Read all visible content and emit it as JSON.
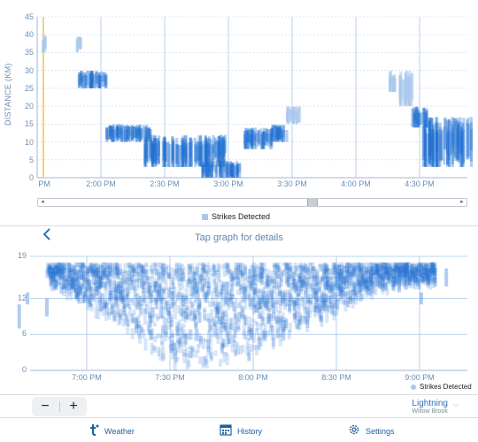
{
  "top_chart": {
    "ylabel": "DISTANCE (KM)",
    "y_ticks": [
      "45",
      "40",
      "35",
      "30",
      "25",
      "20",
      "15",
      "10",
      "5",
      "0"
    ],
    "x_ticks": [
      "PM",
      "2:00 PM",
      "2:30 PM",
      "3:00 PM",
      "3:30 PM",
      "4:00 PM",
      "4:30 PM"
    ],
    "legend": "Strikes Detected"
  },
  "nav": {
    "back_icon": "chevron-left-icon",
    "title": "Tap graph for details"
  },
  "bottom_chart": {
    "y_ticks": [
      "19",
      "12",
      "6",
      "0"
    ],
    "x_ticks": [
      "7:00 PM",
      "7:30 PM",
      "8:00 PM",
      "8:30 PM",
      "9:00 PM"
    ],
    "legend": "Strikes Detected"
  },
  "controls": {
    "zoom_out": "−",
    "zoom_in": "+",
    "layer": "Lightning",
    "location": "Willow Brook"
  },
  "tabs": [
    {
      "label": "Weather",
      "icon": "weather-logo-icon"
    },
    {
      "label": "History",
      "icon": "calendar-icon"
    },
    {
      "label": "Settings",
      "icon": "gear-icon"
    }
  ],
  "colors": {
    "accent": "#1f6fd1",
    "light_marker": "#a9c7ec",
    "grid": "#a9c4e4",
    "highlight_line": "#f2c14e"
  },
  "chart_data": [
    {
      "type": "scatter",
      "ylabel": "DISTANCE (KM)",
      "xlabel": "",
      "ylim": [
        0,
        45
      ],
      "x_tick_labels": [
        "PM",
        "2:00 PM",
        "2:30 PM",
        "3:00 PM",
        "3:30 PM",
        "4:00 PM",
        "4:30 PM"
      ],
      "series": [
        {
          "name": "Strikes Detected",
          "clusters": [
            {
              "x": [
                "1:32 PM",
                "1:34 PM"
              ],
              "y": [
                35,
                40
              ]
            },
            {
              "x": [
                "1:48 PM",
                "1:50 PM"
              ],
              "y": [
                35,
                40
              ]
            },
            {
              "x": [
                "1:49 PM",
                "2:02 PM"
              ],
              "y": [
                25,
                30
              ]
            },
            {
              "x": [
                "2:02 PM",
                "2:23 PM"
              ],
              "y": [
                10,
                15
              ]
            },
            {
              "x": [
                "2:20 PM",
                "2:58 PM"
              ],
              "y": [
                3,
                12
              ]
            },
            {
              "x": [
                "2:47 PM",
                "3:05 PM"
              ],
              "y": [
                0,
                5
              ]
            },
            {
              "x": [
                "3:07 PM",
                "3:20 PM"
              ],
              "y": [
                8,
                14
              ]
            },
            {
              "x": [
                "3:19 PM",
                "3:27 PM"
              ],
              "y": [
                10,
                15
              ]
            },
            {
              "x": [
                "3:27 PM",
                "3:33 PM"
              ],
              "y": [
                15,
                20
              ]
            },
            {
              "x": [
                "4:15 PM",
                "4:18 PM"
              ],
              "y": [
                24,
                30
              ]
            },
            {
              "x": [
                "4:20 PM",
                "4:26 PM"
              ],
              "y": [
                20,
                30
              ]
            },
            {
              "x": [
                "4:26 PM",
                "4:33 PM"
              ],
              "y": [
                14,
                20
              ]
            },
            {
              "x": [
                "4:31 PM",
                "4:54 PM"
              ],
              "y": [
                3,
                17
              ]
            }
          ]
        }
      ]
    },
    {
      "type": "scatter",
      "ylim": [
        0,
        19
      ],
      "x_tick_labels": [
        "7:00 PM",
        "7:30 PM",
        "8:00 PM",
        "8:30 PM",
        "9:00 PM"
      ],
      "series": [
        {
          "name": "Strikes Detected",
          "note_shape": "dense band forming a V-shaped envelope",
          "envelope": [
            {
              "x": "6:45 PM",
              "y_min": 14,
              "y_max": 17
            },
            {
              "x": "7:00 PM",
              "y_min": 10,
              "y_max": 17
            },
            {
              "x": "7:15 PM",
              "y_min": 6,
              "y_max": 17
            },
            {
              "x": "7:30 PM",
              "y_min": 0,
              "y_max": 17
            },
            {
              "x": "7:45 PM",
              "y_min": 0,
              "y_max": 17
            },
            {
              "x": "8:00 PM",
              "y_min": 2,
              "y_max": 17
            },
            {
              "x": "8:15 PM",
              "y_min": 6,
              "y_max": 17
            },
            {
              "x": "8:30 PM",
              "y_min": 9,
              "y_max": 17
            },
            {
              "x": "8:45 PM",
              "y_min": 13,
              "y_max": 17
            },
            {
              "x": "9:00 PM",
              "y_min": 14,
              "y_max": 17
            }
          ]
        }
      ]
    }
  ]
}
